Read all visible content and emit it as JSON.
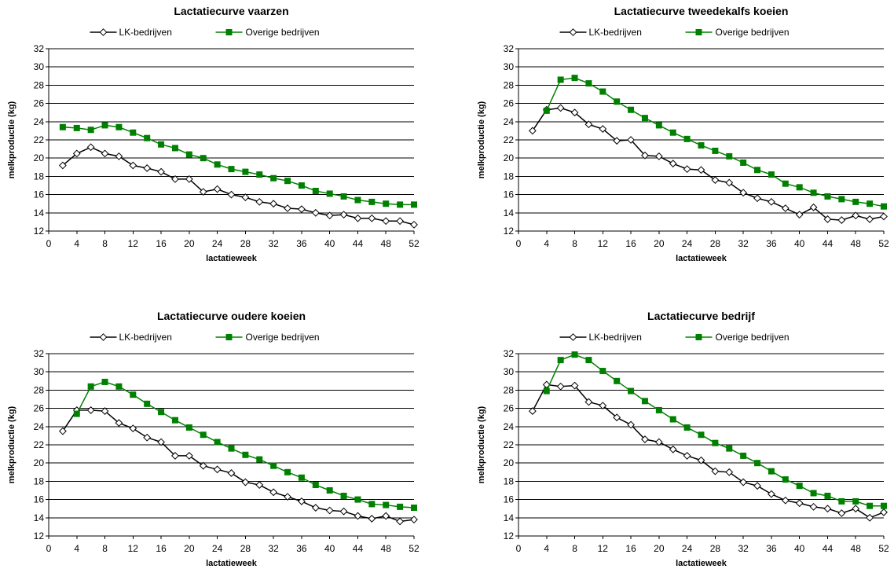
{
  "legend": {
    "lk_label": "LK-bedrijven",
    "other_label": "Overige bedrijven"
  },
  "colors": {
    "lk": "#000000",
    "other": "#008000",
    "grid": "#000000"
  },
  "chart_data": [
    {
      "type": "line",
      "title": "Lactatiecurve vaarzen",
      "xlabel": "lactatieweek",
      "ylabel": "melkproductie (kg)",
      "xlim": [
        0,
        52
      ],
      "ylim": [
        12,
        32
      ],
      "xticks": [
        0,
        4,
        8,
        12,
        16,
        20,
        24,
        28,
        32,
        36,
        40,
        44,
        48,
        52
      ],
      "yticks": [
        12,
        14,
        16,
        18,
        20,
        22,
        24,
        26,
        28,
        30,
        32
      ],
      "grid": true,
      "legend_position": "top",
      "x": [
        2,
        4,
        6,
        8,
        10,
        12,
        14,
        16,
        18,
        20,
        22,
        24,
        26,
        28,
        30,
        32,
        34,
        36,
        38,
        40,
        42,
        44,
        46,
        48,
        50,
        52
      ],
      "series": [
        {
          "name": "LK-bedrijven",
          "values": [
            19.2,
            20.5,
            21.2,
            20.5,
            20.2,
            19.2,
            18.9,
            18.5,
            17.7,
            17.7,
            16.3,
            16.6,
            16.0,
            15.7,
            15.2,
            15.0,
            14.5,
            14.4,
            14.0,
            13.7,
            13.8,
            13.4,
            13.4,
            13.1,
            13.1,
            12.7
          ]
        },
        {
          "name": "Overige bedrijven",
          "values": [
            23.4,
            23.3,
            23.1,
            23.6,
            23.4,
            22.8,
            22.2,
            21.5,
            21.1,
            20.4,
            20.0,
            19.3,
            18.8,
            18.5,
            18.2,
            17.8,
            17.5,
            17.0,
            16.4,
            16.1,
            15.8,
            15.4,
            15.2,
            15.0,
            14.9,
            14.9
          ]
        }
      ]
    },
    {
      "type": "line",
      "title": "Lactatiecurve tweedekalfs koeien",
      "xlabel": "lactatieweek",
      "ylabel": "melkproductie (kg)",
      "xlim": [
        0,
        52
      ],
      "ylim": [
        12,
        32
      ],
      "xticks": [
        0,
        4,
        8,
        12,
        16,
        20,
        24,
        28,
        32,
        36,
        40,
        44,
        48,
        52
      ],
      "yticks": [
        12,
        14,
        16,
        18,
        20,
        22,
        24,
        26,
        28,
        30,
        32
      ],
      "grid": true,
      "legend_position": "top",
      "x": [
        2,
        4,
        6,
        8,
        10,
        12,
        14,
        16,
        18,
        20,
        22,
        24,
        26,
        28,
        30,
        32,
        34,
        36,
        38,
        40,
        42,
        44,
        46,
        48,
        50,
        52
      ],
      "series": [
        {
          "name": "LK-bedrijven",
          "values": [
            23.0,
            25.3,
            25.5,
            25.0,
            23.7,
            23.2,
            21.9,
            22.0,
            20.3,
            20.2,
            19.4,
            18.8,
            18.7,
            17.6,
            17.3,
            16.2,
            15.6,
            15.2,
            14.5,
            13.8,
            14.6,
            13.3,
            13.2,
            13.7,
            13.3,
            13.6
          ]
        },
        {
          "name": "Overige bedrijven",
          "values": [
            null,
            25.2,
            28.6,
            28.8,
            28.2,
            27.3,
            26.2,
            25.3,
            24.4,
            23.6,
            22.8,
            22.1,
            21.4,
            20.8,
            20.2,
            19.5,
            18.7,
            18.2,
            17.2,
            16.8,
            16.2,
            15.8,
            15.5,
            15.2,
            15.0,
            14.7
          ]
        }
      ]
    },
    {
      "type": "line",
      "title": "Lactatiecurve oudere koeien",
      "xlabel": "lactatieweek",
      "ylabel": "melkproductie (kg)",
      "xlim": [
        0,
        52
      ],
      "ylim": [
        12,
        32
      ],
      "xticks": [
        0,
        4,
        8,
        12,
        16,
        20,
        24,
        28,
        32,
        36,
        40,
        44,
        48,
        52
      ],
      "yticks": [
        12,
        14,
        16,
        18,
        20,
        22,
        24,
        26,
        28,
        30,
        32
      ],
      "grid": true,
      "legend_position": "top",
      "x": [
        2,
        4,
        6,
        8,
        10,
        12,
        14,
        16,
        18,
        20,
        22,
        24,
        26,
        28,
        30,
        32,
        34,
        36,
        38,
        40,
        42,
        44,
        46,
        48,
        50,
        52
      ],
      "series": [
        {
          "name": "LK-bedrijven",
          "values": [
            23.5,
            25.8,
            25.8,
            25.7,
            24.4,
            23.8,
            22.8,
            22.3,
            20.8,
            20.8,
            19.7,
            19.3,
            18.9,
            17.9,
            17.6,
            16.8,
            16.3,
            15.8,
            15.1,
            14.8,
            14.7,
            14.2,
            13.9,
            14.2,
            13.6,
            13.8
          ]
        },
        {
          "name": "Overige bedrijven",
          "values": [
            null,
            25.4,
            28.4,
            28.9,
            28.4,
            27.5,
            26.5,
            25.6,
            24.7,
            23.9,
            23.1,
            22.3,
            21.6,
            20.9,
            20.4,
            19.7,
            19.0,
            18.4,
            17.6,
            17.0,
            16.4,
            16.0,
            15.5,
            15.4,
            15.2,
            15.1
          ]
        }
      ]
    },
    {
      "type": "line",
      "title": "Lactatiecurve bedrijf",
      "xlabel": "lactatieweek",
      "ylabel": "melkproductie (kg)",
      "xlim": [
        0,
        52
      ],
      "ylim": [
        12,
        32
      ],
      "xticks": [
        0,
        4,
        8,
        12,
        16,
        20,
        24,
        28,
        32,
        36,
        40,
        44,
        48,
        52
      ],
      "yticks": [
        12,
        14,
        16,
        18,
        20,
        22,
        24,
        26,
        28,
        30,
        32
      ],
      "grid": true,
      "legend_position": "top",
      "x": [
        2,
        4,
        6,
        8,
        10,
        12,
        14,
        16,
        18,
        20,
        22,
        24,
        26,
        28,
        30,
        32,
        34,
        36,
        38,
        40,
        42,
        44,
        46,
        48,
        50,
        52
      ],
      "series": [
        {
          "name": "LK-bedrijven",
          "values": [
            25.7,
            28.6,
            28.4,
            28.5,
            26.7,
            26.3,
            25.0,
            24.2,
            22.6,
            22.3,
            21.5,
            20.8,
            20.3,
            19.1,
            19.0,
            17.9,
            17.5,
            16.6,
            15.9,
            15.6,
            15.2,
            15.0,
            14.5,
            15.0,
            14.0,
            14.6
          ]
        },
        {
          "name": "Overige bedrijven",
          "values": [
            null,
            27.9,
            31.3,
            31.9,
            31.3,
            30.1,
            29.0,
            27.9,
            26.8,
            25.8,
            24.8,
            23.9,
            23.1,
            22.2,
            21.6,
            20.8,
            20.0,
            19.1,
            18.2,
            17.5,
            16.7,
            16.4,
            15.8,
            15.8,
            15.3,
            15.3
          ]
        }
      ]
    }
  ]
}
